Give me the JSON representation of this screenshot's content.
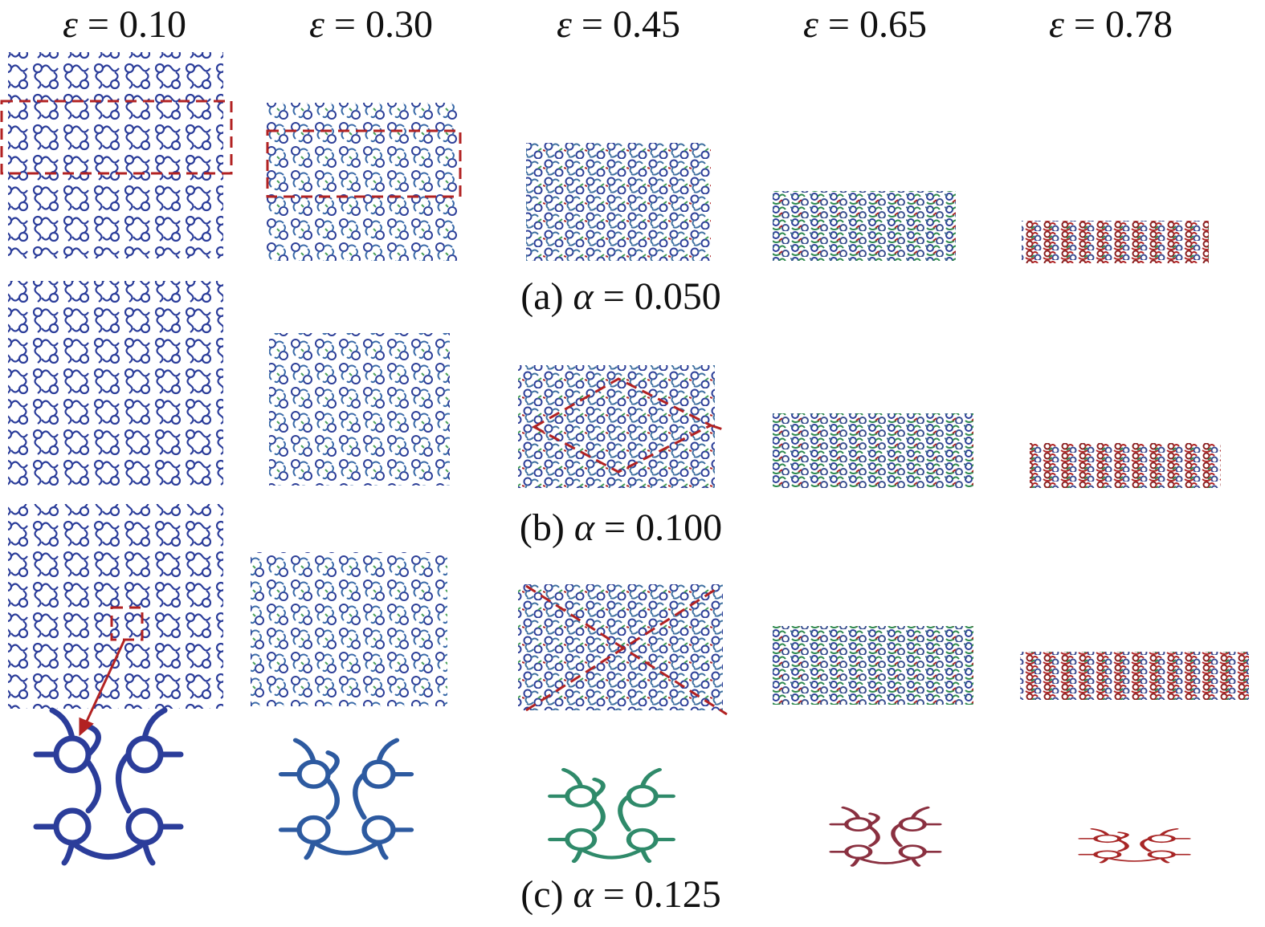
{
  "columns": [
    {
      "symbol": "ε",
      "text": "= 0.10"
    },
    {
      "symbol": "ε",
      "text": "= 0.30"
    },
    {
      "symbol": "ε",
      "text": "= 0.45"
    },
    {
      "symbol": "ε",
      "text": "= 0.65"
    },
    {
      "symbol": "ε",
      "text": "= 0.78"
    }
  ],
  "rows": [
    {
      "label": "(a)",
      "symbol": "α",
      "text": "= 0.050"
    },
    {
      "label": "(b)",
      "symbol": "α",
      "text": "= 0.100"
    },
    {
      "label": "(c)",
      "symbol": "α",
      "text": "= 0.125"
    }
  ]
}
